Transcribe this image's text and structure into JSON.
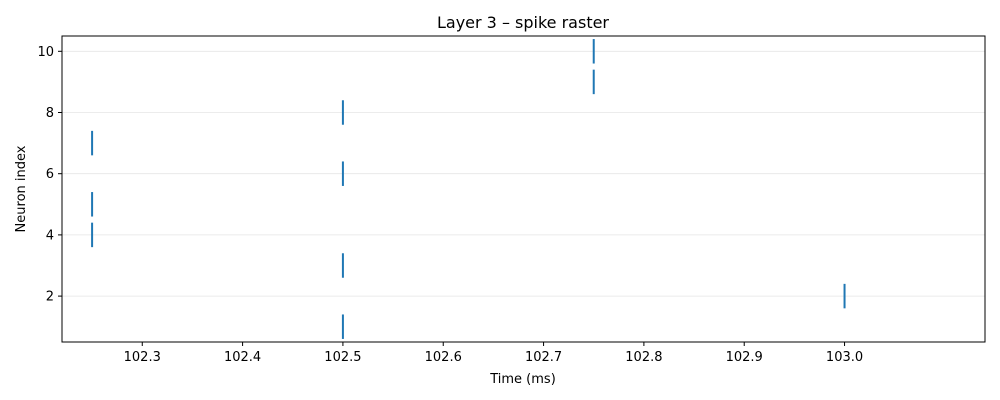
{
  "chart_data": {
    "type": "scatter",
    "marker": "vertical-line",
    "title": "Layer 3 – spike raster",
    "xlabel": "Time (ms)",
    "ylabel": "Neuron index",
    "xlim": [
      102.22,
      103.14
    ],
    "ylim": [
      0.5,
      10.5
    ],
    "x_ticks": [
      102.3,
      102.4,
      102.5,
      102.6,
      102.7,
      102.8,
      102.9,
      103.0
    ],
    "x_tick_labels": [
      "102.3",
      "102.4",
      "102.5",
      "102.6",
      "102.7",
      "102.8",
      "102.9",
      "103.0"
    ],
    "y_ticks": [
      2,
      4,
      6,
      8,
      10
    ],
    "y_tick_labels": [
      "2",
      "4",
      "6",
      "8",
      "10"
    ],
    "grid": "horizontal",
    "color": "#1f77b4",
    "spikes": [
      {
        "x": 102.25,
        "y": 4
      },
      {
        "x": 102.25,
        "y": 5
      },
      {
        "x": 102.25,
        "y": 7
      },
      {
        "x": 102.5,
        "y": 1
      },
      {
        "x": 102.5,
        "y": 3
      },
      {
        "x": 102.5,
        "y": 6
      },
      {
        "x": 102.5,
        "y": 8
      },
      {
        "x": 102.75,
        "y": 9
      },
      {
        "x": 102.75,
        "y": 10
      },
      {
        "x": 103.0,
        "y": 2
      }
    ]
  }
}
